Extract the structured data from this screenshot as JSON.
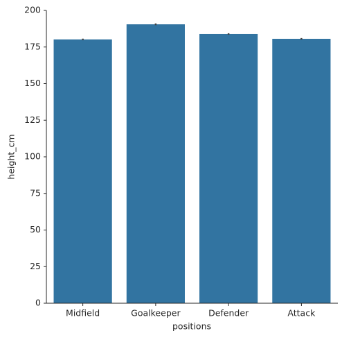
{
  "chart_data": {
    "type": "bar",
    "x_label": "positions",
    "y_label": "height_cm",
    "categories": [
      "Midfield",
      "Goalkeeper",
      "Defender",
      "Attack"
    ],
    "values": [
      180.2,
      190.5,
      183.9,
      180.6
    ],
    "errors": [
      0.5,
      0.6,
      0.5,
      0.5
    ],
    "color": "#3274a1",
    "error_color": "#424242",
    "ylim": [
      0,
      200
    ],
    "yticks": [
      0,
      25,
      50,
      75,
      100,
      125,
      150,
      175,
      200
    ],
    "grid": false
  }
}
